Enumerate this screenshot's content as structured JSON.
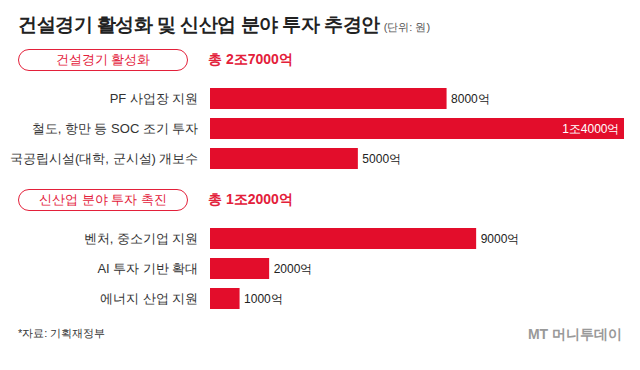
{
  "title": "건설경기 활성화 및 신산업 분야 투자 추경안",
  "unit_note": "(단위: 원)",
  "source": "*자료: 기획재정부",
  "logo": "MT 머니투데이",
  "chart_data": [
    {
      "type": "bar",
      "orientation": "horizontal",
      "title": "건설경기 활성화",
      "subtitle": "총 2조7000억",
      "categories": [
        "PF 사업장 지원",
        "철도, 항만 등 SOC 조기 투자",
        "국공립시설(대학, 군시설) 개보수"
      ],
      "values": [
        8000,
        14000,
        5000
      ],
      "value_labels": [
        "8000억",
        "1조4000억",
        "5000억"
      ],
      "data_labels": true,
      "color": "#e30d2b",
      "xlim": [
        0,
        14000
      ],
      "tick_labels": "y"
    },
    {
      "type": "bar",
      "orientation": "horizontal",
      "title": "신산업 분야 투자 촉진",
      "subtitle": "총 1조2000억",
      "categories": [
        "벤처, 중소기업 지원",
        "AI 투자 기반 확대",
        "에너지 산업 지원"
      ],
      "values": [
        9000,
        2000,
        1000
      ],
      "value_labels": [
        "9000억",
        "2000억",
        "1000억"
      ],
      "data_labels": true,
      "color": "#e30d2b",
      "xlim": [
        0,
        14000
      ],
      "tick_labels": "y"
    }
  ]
}
